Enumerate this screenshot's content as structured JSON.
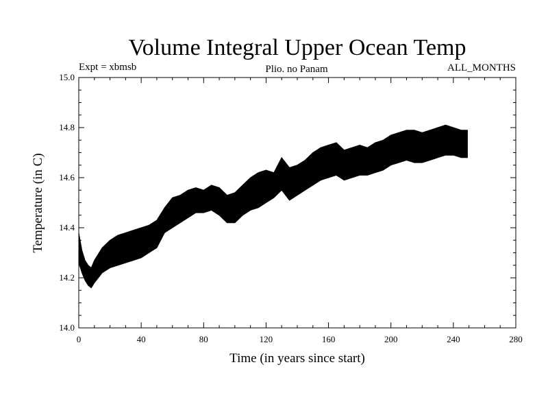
{
  "chart_data": {
    "type": "area",
    "title": "Volume Integral Upper Ocean Temp",
    "subtitle_left": "Expt = xbmsb",
    "subtitle_center": "Plio. no Panam",
    "subtitle_right": "ALL_MONTHS",
    "xlabel": "Time (in years since start)",
    "ylabel": "Temperature (in C)",
    "xlim": [
      0,
      280
    ],
    "ylim": [
      14.0,
      15.0
    ],
    "x_ticks": [
      0,
      40,
      80,
      120,
      160,
      200,
      240,
      280
    ],
    "y_ticks": [
      "14.0",
      "14.2",
      "14.4",
      "14.6",
      "14.8",
      "15.0"
    ],
    "grid": false,
    "series": [
      {
        "fill_color": "#000000",
        "upper": [
          [
            0,
            14.38
          ],
          [
            2,
            14.31
          ],
          [
            4,
            14.27
          ],
          [
            6,
            14.25
          ],
          [
            8,
            14.24
          ],
          [
            10,
            14.27
          ],
          [
            15,
            14.32
          ],
          [
            20,
            14.35
          ],
          [
            25,
            14.37
          ],
          [
            30,
            14.38
          ],
          [
            35,
            14.39
          ],
          [
            40,
            14.4
          ],
          [
            45,
            14.41
          ],
          [
            50,
            14.43
          ],
          [
            55,
            14.48
          ],
          [
            60,
            14.52
          ],
          [
            65,
            14.53
          ],
          [
            70,
            14.55
          ],
          [
            75,
            14.56
          ],
          [
            80,
            14.55
          ],
          [
            85,
            14.57
          ],
          [
            90,
            14.56
          ],
          [
            95,
            14.53
          ],
          [
            100,
            14.54
          ],
          [
            105,
            14.57
          ],
          [
            110,
            14.6
          ],
          [
            115,
            14.62
          ],
          [
            120,
            14.63
          ],
          [
            125,
            14.62
          ],
          [
            130,
            14.68
          ],
          [
            135,
            14.64
          ],
          [
            140,
            14.65
          ],
          [
            145,
            14.67
          ],
          [
            150,
            14.7
          ],
          [
            155,
            14.72
          ],
          [
            160,
            14.73
          ],
          [
            165,
            14.74
          ],
          [
            170,
            14.71
          ],
          [
            175,
            14.72
          ],
          [
            180,
            14.73
          ],
          [
            185,
            14.72
          ],
          [
            190,
            14.74
          ],
          [
            195,
            14.75
          ],
          [
            200,
            14.77
          ],
          [
            205,
            14.78
          ],
          [
            210,
            14.79
          ],
          [
            215,
            14.79
          ],
          [
            220,
            14.78
          ],
          [
            225,
            14.79
          ],
          [
            230,
            14.8
          ],
          [
            235,
            14.81
          ],
          [
            240,
            14.8
          ],
          [
            245,
            14.79
          ],
          [
            249,
            14.79
          ]
        ],
        "lower": [
          [
            0,
            14.26
          ],
          [
            2,
            14.22
          ],
          [
            4,
            14.19
          ],
          [
            6,
            14.17
          ],
          [
            8,
            14.16
          ],
          [
            10,
            14.18
          ],
          [
            15,
            14.22
          ],
          [
            20,
            14.24
          ],
          [
            25,
            14.25
          ],
          [
            30,
            14.26
          ],
          [
            35,
            14.27
          ],
          [
            40,
            14.28
          ],
          [
            45,
            14.3
          ],
          [
            50,
            14.32
          ],
          [
            55,
            14.38
          ],
          [
            60,
            14.4
          ],
          [
            65,
            14.42
          ],
          [
            70,
            14.44
          ],
          [
            75,
            14.46
          ],
          [
            80,
            14.46
          ],
          [
            85,
            14.47
          ],
          [
            90,
            14.45
          ],
          [
            95,
            14.42
          ],
          [
            100,
            14.42
          ],
          [
            105,
            14.45
          ],
          [
            110,
            14.47
          ],
          [
            115,
            14.48
          ],
          [
            120,
            14.5
          ],
          [
            125,
            14.52
          ],
          [
            130,
            14.55
          ],
          [
            135,
            14.51
          ],
          [
            140,
            14.53
          ],
          [
            145,
            14.55
          ],
          [
            150,
            14.57
          ],
          [
            155,
            14.59
          ],
          [
            160,
            14.6
          ],
          [
            165,
            14.61
          ],
          [
            170,
            14.59
          ],
          [
            175,
            14.6
          ],
          [
            180,
            14.61
          ],
          [
            185,
            14.61
          ],
          [
            190,
            14.62
          ],
          [
            195,
            14.63
          ],
          [
            200,
            14.65
          ],
          [
            205,
            14.66
          ],
          [
            210,
            14.67
          ],
          [
            215,
            14.66
          ],
          [
            220,
            14.66
          ],
          [
            225,
            14.67
          ],
          [
            230,
            14.68
          ],
          [
            235,
            14.69
          ],
          [
            240,
            14.69
          ],
          [
            245,
            14.68
          ],
          [
            249,
            14.68
          ]
        ]
      }
    ]
  }
}
